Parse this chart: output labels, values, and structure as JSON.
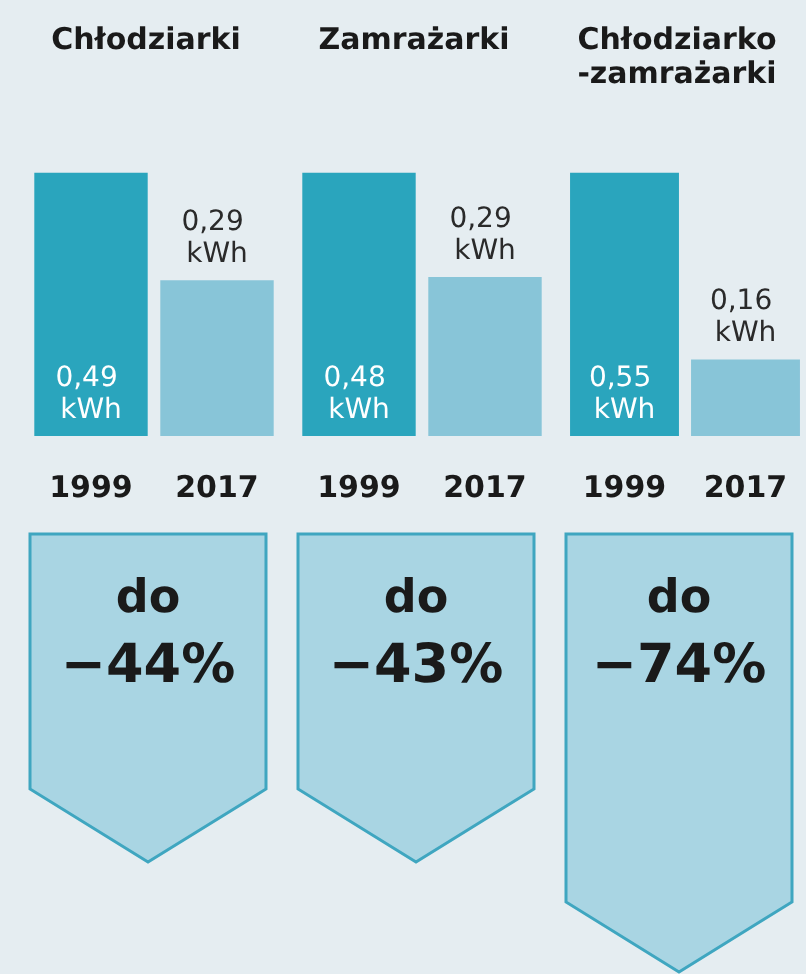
{
  "chart_data": [
    {
      "type": "bar",
      "title": "Chłodziarki",
      "categories": [
        "1999",
        "2017"
      ],
      "values": [
        0.49,
        0.29
      ],
      "colors": [
        "#2aa5bd",
        "#88c5d8"
      ],
      "value_labels": [
        "0,49 kWh",
        "0,29 kWh"
      ],
      "annotations": [
        "do",
        "−44%"
      ]
    },
    {
      "type": "bar",
      "title": "Zamrażarki",
      "categories": [
        "1999",
        "2017"
      ],
      "values": [
        0.48,
        0.29
      ],
      "colors": [
        "#2aa5bd",
        "#88c5d8"
      ],
      "value_labels": [
        "0,48 kWh",
        "0,29 kWh"
      ],
      "annotations": [
        "do",
        "−43%"
      ]
    },
    {
      "type": "bar",
      "title": "Chłodziarko\n-zamrażarki",
      "categories": [
        "1999",
        "2017"
      ],
      "values": [
        0.55,
        0.16
      ],
      "colors": [
        "#2aa5bd",
        "#88c5d8"
      ],
      "value_labels": [
        "0,55 kWh",
        "0,16 kWh"
      ],
      "annotations": [
        "do",
        "−74%"
      ]
    }
  ]
}
